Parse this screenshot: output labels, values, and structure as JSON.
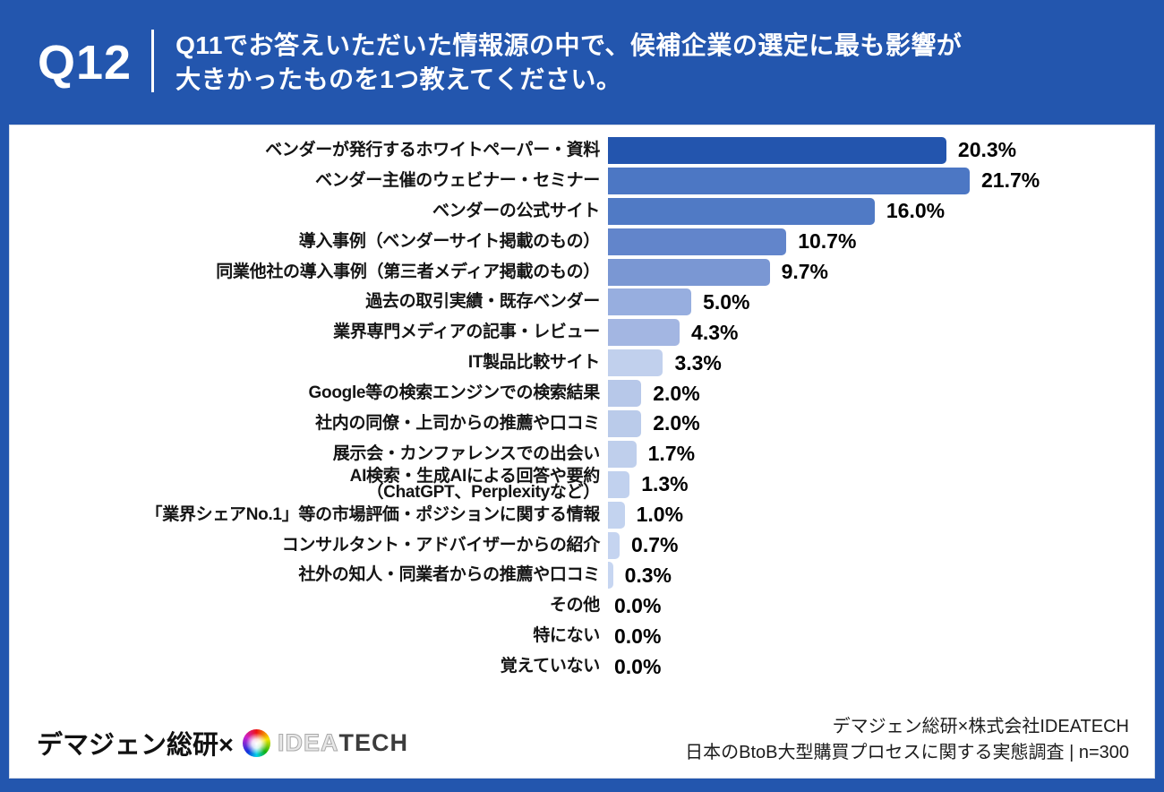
{
  "header": {
    "qno": "Q12",
    "question_line1": "Q11でお答えいただいた情報源の中で、候補企業の選定に最も影響が",
    "question_line2": "大きかったものを1つ教えてください。"
  },
  "chart_data": {
    "type": "bar",
    "orientation": "horizontal",
    "unit": "%",
    "xlim": [
      0,
      21.7
    ],
    "grid": false,
    "legend": "none",
    "categories": [
      "ベンダーが発行するホワイトペーパー・資料",
      "ベンダー主催のウェビナー・セミナー",
      "ベンダーの公式サイト",
      "導入事例（ベンダーサイト掲載のもの）",
      "同業他社の導入事例（第三者メディア掲載のもの）",
      "過去の取引実績・既存ベンダー",
      "業界専門メディアの記事・レビュー",
      "IT製品比較サイト",
      "Google等の検索エンジンでの検索結果",
      "社内の同僚・上司からの推薦や口コミ",
      "展示会・カンファレンスでの出会い",
      "AI検索・生成AIによる回答や要約\n（ChatGPT、Perplexityなど）",
      "「業界シェアNo.1」等の市場評価・ポジションに関する情報",
      "コンサルタント・アドバイザーからの紹介",
      "社外の知人・同業者からの推薦や口コミ",
      "その他",
      "特にない",
      "覚えていない"
    ],
    "values": [
      20.3,
      21.7,
      16.0,
      10.7,
      9.7,
      5.0,
      4.3,
      3.3,
      2.0,
      2.0,
      1.7,
      1.3,
      1.0,
      0.7,
      0.3,
      0.0,
      0.0,
      0.0
    ],
    "value_labels": [
      "20.3%",
      "21.7%",
      "16.0%",
      "10.7%",
      "9.7%",
      "5.0%",
      "4.3%",
      "3.3%",
      "2.0%",
      "2.0%",
      "1.7%",
      "1.3%",
      "1.0%",
      "0.7%",
      "0.3%",
      "0.0%",
      "0.0%",
      "0.0%"
    ],
    "bar_colors": [
      "#2355AE",
      "#4C77C4",
      "#507AC5",
      "#6285CB",
      "#7A97D3",
      "#97AEDF",
      "#A3B6E2",
      "#C1D0ED",
      "#B7C8E9",
      "#BACBEA",
      "#BFCFEC",
      "#C1D1EE",
      "#C3D3EF",
      "#C5D4F0",
      "#C7D6F1",
      "",
      "",
      ""
    ]
  },
  "footer": {
    "left_text": "デマジェン総研×",
    "logo_idea": "IDEA",
    "logo_tech": "TECH",
    "right_line1": "デマジェン総研×株式会社IDEATECH",
    "right_line2": "日本のBtoB大型購買プロセスに関する実態調査 | n=300"
  },
  "colors": {
    "background": "#2356AE",
    "card": "#FFFFFF",
    "text": "#000000",
    "header_text": "#FFFFFF"
  }
}
